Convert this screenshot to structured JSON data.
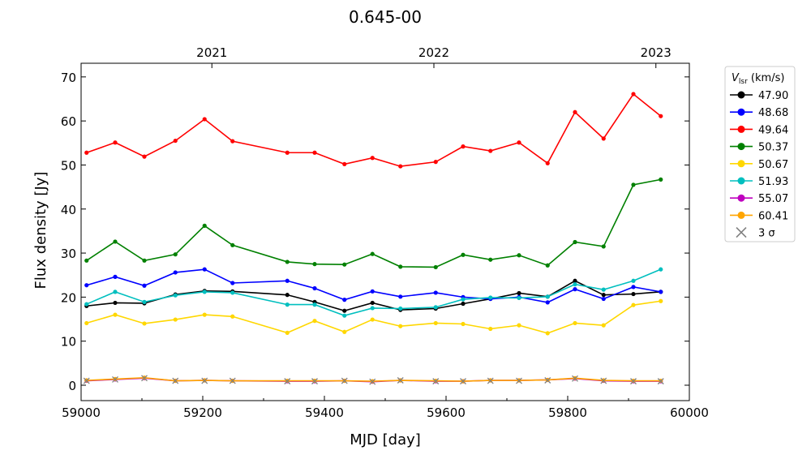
{
  "chart_data": {
    "type": "line",
    "title": "0.645-00",
    "xlabel": "MJD [day]",
    "ylabel": "Flux density [Jy]",
    "xlim": [
      59000,
      60000
    ],
    "ylim": [
      -3.5,
      73.1
    ],
    "xticks": [
      59000,
      59200,
      59400,
      59600,
      59800,
      60000
    ],
    "yticks": [
      0,
      10,
      20,
      30,
      40,
      50,
      60,
      70
    ],
    "top_axis": {
      "ticks": [
        {
          "label": "2021",
          "mjd": 59215
        },
        {
          "label": "2022",
          "mjd": 59580
        },
        {
          "label": "2023",
          "mjd": 59945
        }
      ]
    },
    "legend": {
      "title": "V_lsr (km/s)",
      "title_main": "V",
      "title_sub": "lsr",
      "title_unit": " (km/s)",
      "placement": "outside-right",
      "sigma_label": "3 σ"
    },
    "x": [
      59009,
      59056,
      59104,
      59155,
      59203,
      59249,
      59339,
      59384,
      59433,
      59479,
      59525,
      59583,
      59628,
      59673,
      59720,
      59767,
      59812,
      59859,
      59908,
      59953
    ],
    "series": [
      {
        "name": "47.90",
        "color": "#000000",
        "values": [
          18.0,
          18.7,
          18.6,
          20.6,
          21.4,
          21.3,
          20.5,
          18.9,
          16.9,
          18.7,
          17.1,
          17.4,
          18.5,
          19.6,
          20.9,
          20.1,
          23.7,
          20.5,
          20.7,
          21.2
        ]
      },
      {
        "name": "48.68",
        "color": "#0000ff",
        "values": [
          22.7,
          24.6,
          22.6,
          25.6,
          26.3,
          23.2,
          23.7,
          22.0,
          19.4,
          21.3,
          20.1,
          21.0,
          20.0,
          19.6,
          20.0,
          18.8,
          21.8,
          19.6,
          22.3,
          21.2
        ]
      },
      {
        "name": "49.64",
        "color": "#ff0000",
        "values": [
          52.8,
          55.1,
          51.9,
          55.5,
          60.4,
          55.4,
          52.8,
          52.8,
          50.2,
          51.6,
          49.7,
          50.7,
          54.2,
          53.2,
          55.1,
          50.4,
          62.0,
          56.0,
          66.1,
          61.1
        ]
      },
      {
        "name": "50.37",
        "color": "#008000",
        "values": [
          28.3,
          32.6,
          28.3,
          29.7,
          36.2,
          31.8,
          28.0,
          27.5,
          27.4,
          29.8,
          26.9,
          26.8,
          29.6,
          28.5,
          29.5,
          27.2,
          32.5,
          31.5,
          45.5,
          46.7
        ]
      },
      {
        "name": "50.67",
        "color": "#ffd700",
        "values": [
          14.1,
          16.0,
          14.0,
          14.9,
          16.0,
          15.6,
          11.9,
          14.6,
          12.1,
          14.9,
          13.4,
          14.1,
          13.9,
          12.8,
          13.6,
          11.8,
          14.1,
          13.6,
          18.2,
          19.1
        ]
      },
      {
        "name": "51.93",
        "color": "#00bfbf",
        "values": [
          18.4,
          21.2,
          18.9,
          20.4,
          21.2,
          21.0,
          18.3,
          18.3,
          15.8,
          17.5,
          17.4,
          17.7,
          19.5,
          19.9,
          19.8,
          20.1,
          22.9,
          21.7,
          23.7,
          26.3
        ]
      },
      {
        "name": "55.07",
        "color": "#bf00bf",
        "values": [
          1.0,
          1.3,
          1.6,
          1.0,
          1.1,
          1.0,
          0.9,
          0.9,
          1.0,
          0.8,
          1.1,
          0.9,
          0.9,
          1.1,
          1.1,
          1.2,
          1.5,
          1.0,
          0.9,
          0.9
        ]
      },
      {
        "name": "60.41",
        "color": "#ffa500",
        "values": [
          1.1,
          1.4,
          1.7,
          1.0,
          1.1,
          1.0,
          1.0,
          1.0,
          1.0,
          0.9,
          1.1,
          1.0,
          0.9,
          1.1,
          1.1,
          1.2,
          1.6,
          1.1,
          1.0,
          1.0
        ]
      }
    ],
    "sigma3": {
      "name": "3 σ",
      "color": "#808080",
      "values": [
        1.0,
        1.3,
        1.6,
        1.0,
        1.0,
        1.0,
        0.9,
        0.9,
        1.0,
        0.8,
        1.1,
        0.9,
        0.9,
        1.0,
        1.0,
        1.1,
        1.5,
        1.0,
        0.9,
        0.9
      ]
    }
  }
}
